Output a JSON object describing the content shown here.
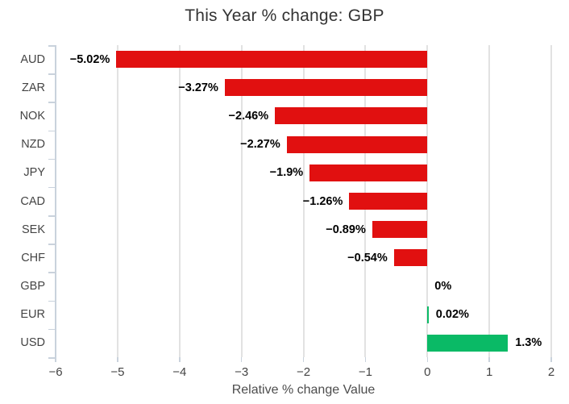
{
  "title": "This Year % change: GBP",
  "x_axis_title": "Relative % change Value",
  "colors": {
    "negative_bar": "#e11010",
    "positive_bar": "#0aba66",
    "gridline": "#e2e2e2",
    "axis_line": "#c9d2dc",
    "title_text": "#333333",
    "tick_text": "#444444",
    "value_text": "#000000"
  },
  "chart_data": {
    "type": "bar",
    "orientation": "horizontal",
    "title": "This Year % change: GBP",
    "xlabel": "Relative % change Value",
    "ylabel": "",
    "categories": [
      "AUD",
      "ZAR",
      "NOK",
      "NZD",
      "JPY",
      "CAD",
      "SEK",
      "CHF",
      "GBP",
      "EUR",
      "USD"
    ],
    "values": [
      -5.02,
      -3.27,
      -2.46,
      -2.27,
      -1.9,
      -1.26,
      -0.89,
      -0.54,
      0,
      0.02,
      1.3
    ],
    "value_labels": [
      "−5.02%",
      "−3.27%",
      "−2.46%",
      "−2.27%",
      "−1.9%",
      "−1.26%",
      "−0.89%",
      "−0.54%",
      "0%",
      "0.02%",
      "1.3%"
    ],
    "xlim": [
      -6,
      2
    ],
    "xticks": [
      -6,
      -5,
      -4,
      -3,
      -2,
      -1,
      0,
      1,
      2
    ],
    "xtick_labels": [
      "−6",
      "−5",
      "−4",
      "−3",
      "−2",
      "−1",
      "0",
      "1",
      "2"
    ],
    "grid": true,
    "legend": false
  }
}
